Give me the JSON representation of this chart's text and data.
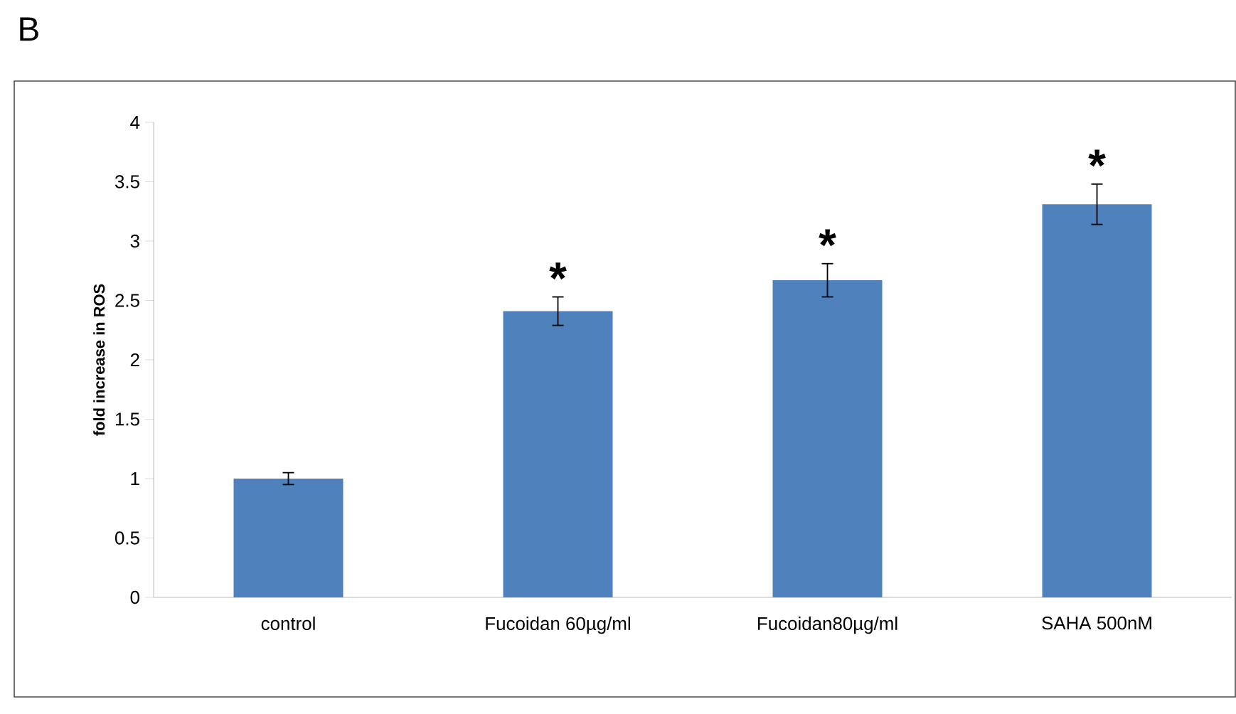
{
  "chart_data": {
    "type": "bar",
    "categories": [
      "control",
      "Fucoidan 60µg/ml",
      "Fucoidan80µg/ml",
      "SAHA 500nM"
    ],
    "values": [
      1.0,
      2.41,
      2.67,
      3.31
    ],
    "errors": [
      0.05,
      0.12,
      0.14,
      0.17
    ],
    "color": "#4f81bd",
    "ylabel": "fold increase in ROS",
    "ylim": [
      0,
      4
    ],
    "yticks": [
      0,
      0.5,
      1,
      1.5,
      2,
      2.5,
      3,
      3.5,
      4
    ],
    "grid": false,
    "annotations": [
      "B",
      "*",
      "*",
      "*"
    ]
  }
}
